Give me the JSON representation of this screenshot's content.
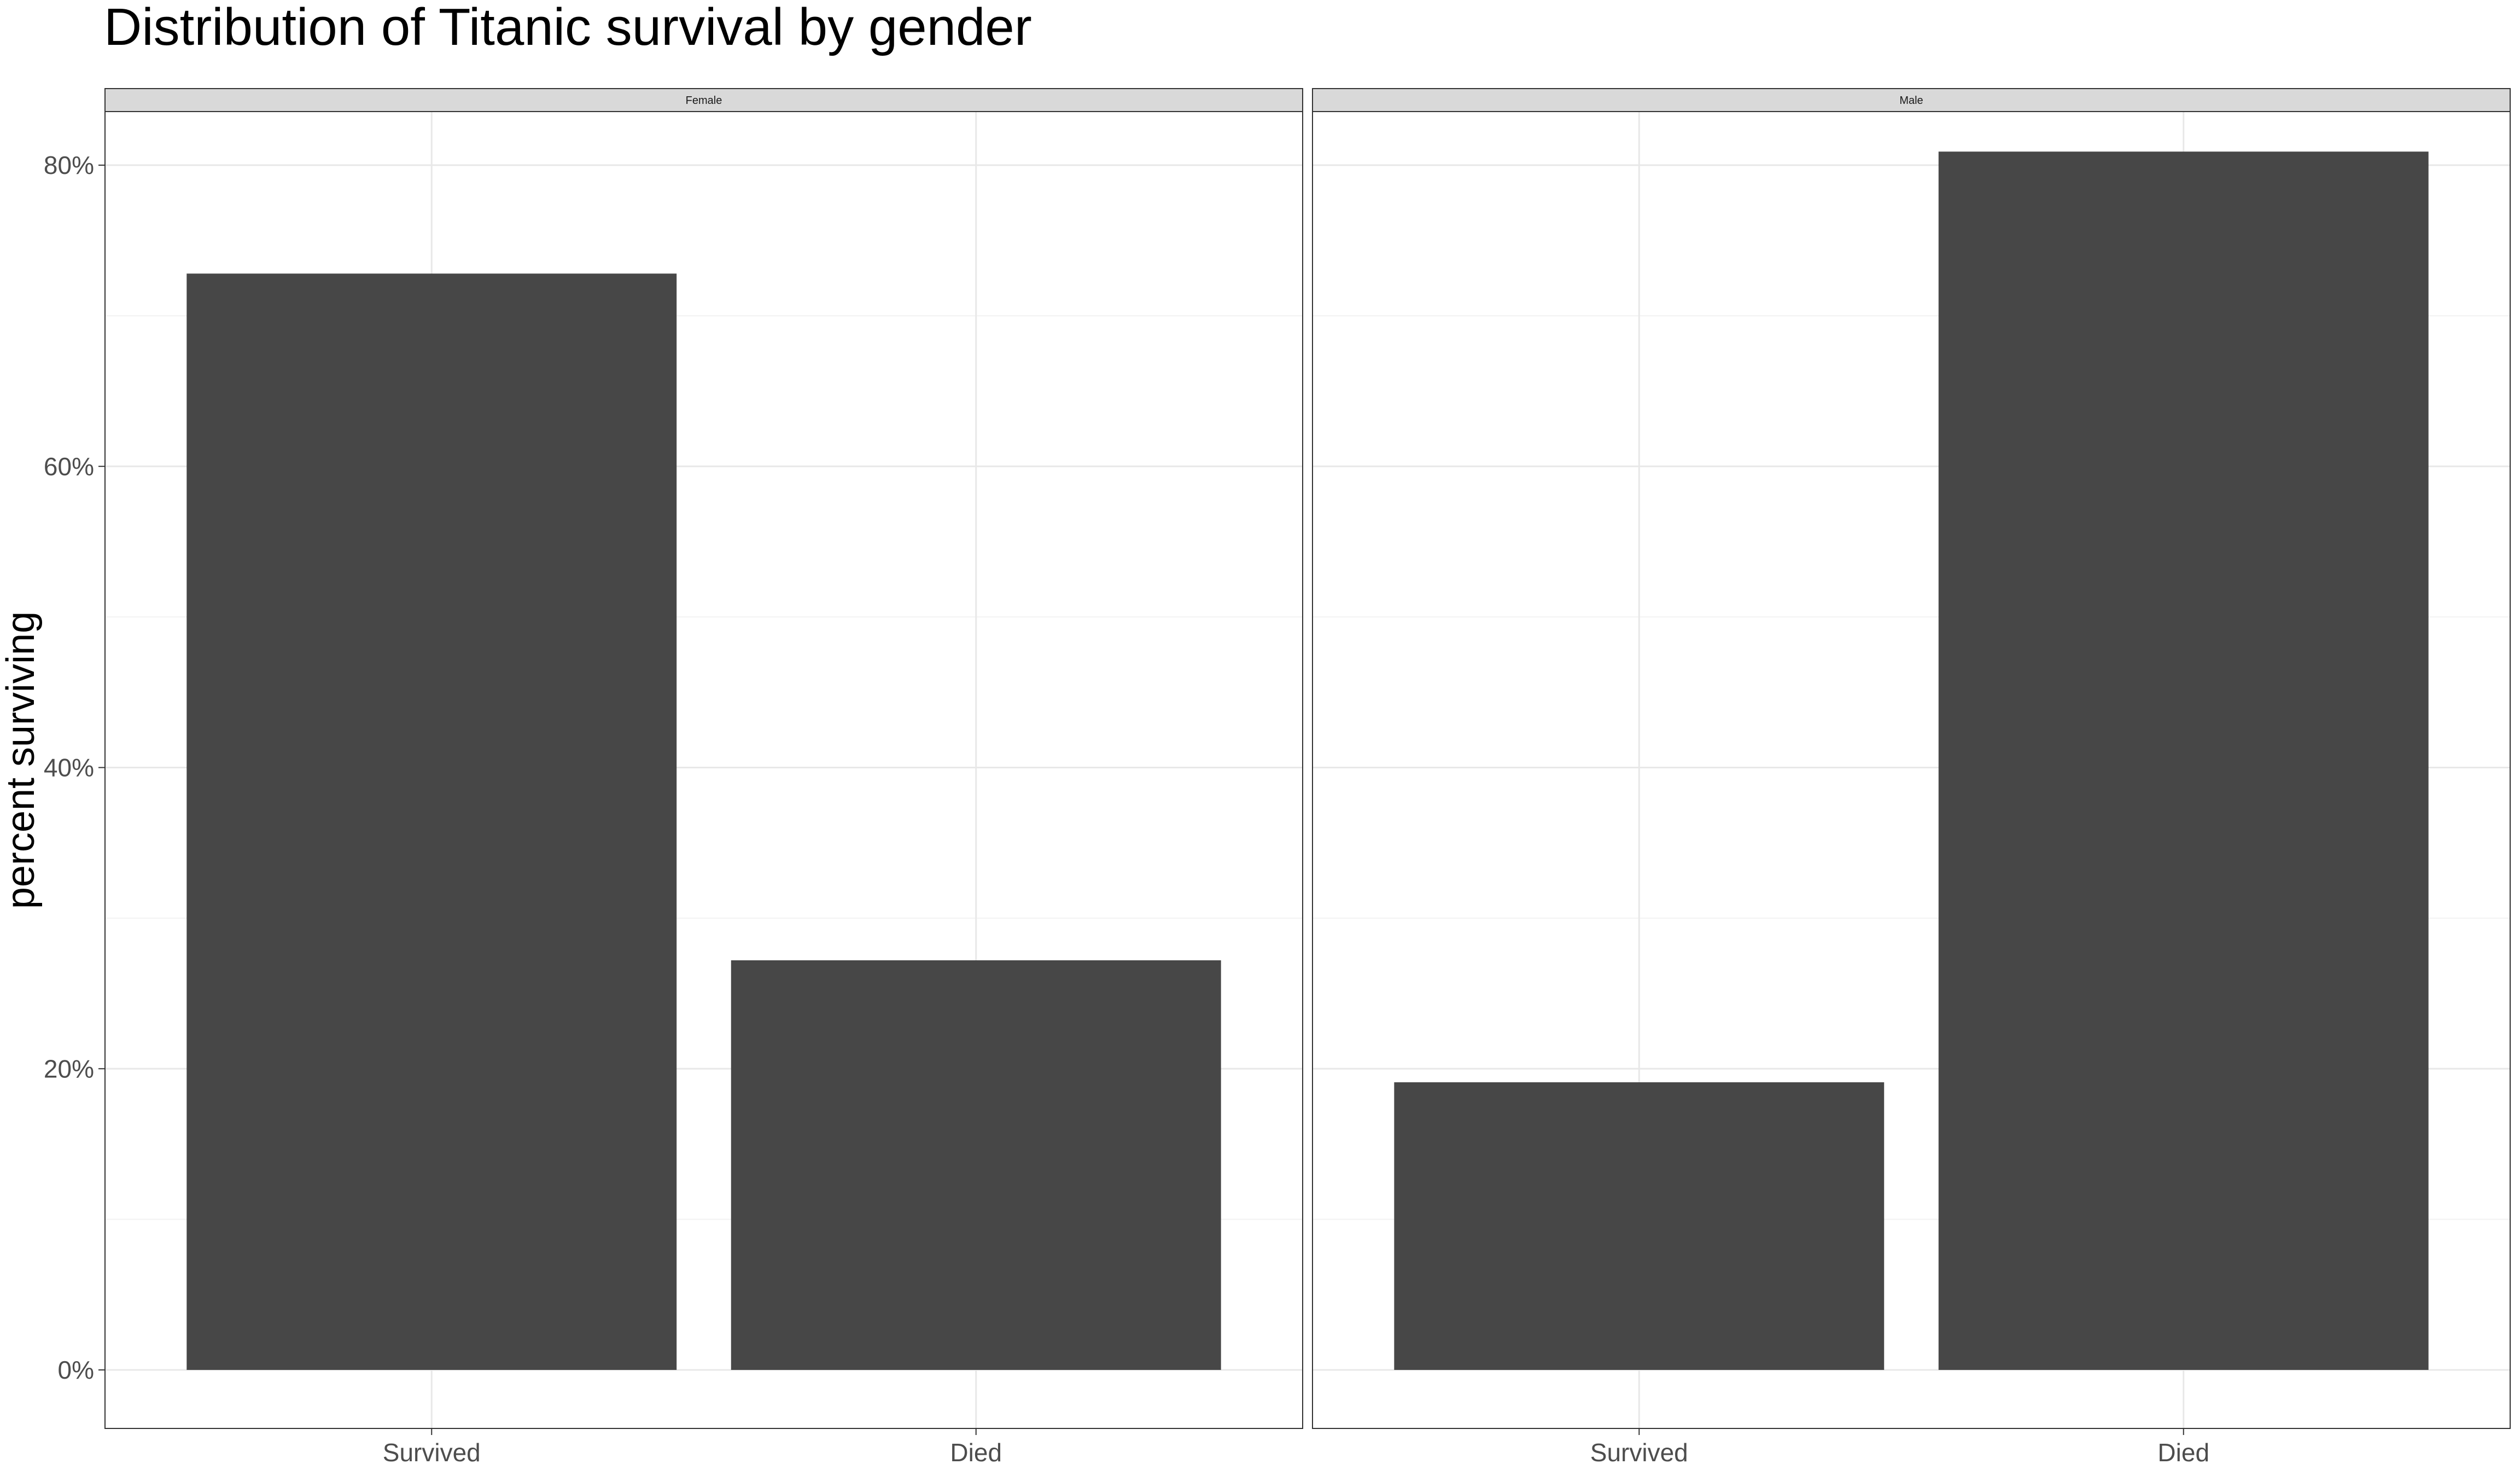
{
  "chart_data": {
    "type": "bar",
    "title": "Distribution of Titanic survival by gender",
    "xlabel": "",
    "ylabel": "percent surviving",
    "ylim": [
      0,
      0.85
    ],
    "y_ticks": [
      0,
      0.2,
      0.4,
      0.6,
      0.8
    ],
    "y_tick_labels": [
      "0%",
      "20%",
      "40%",
      "60%",
      "80%"
    ],
    "categories": [
      "Survived",
      "Died"
    ],
    "grid": true,
    "legend": "none",
    "bar_color": "#474747",
    "panels": [
      {
        "facet": "Female",
        "values": [
          0.728,
          0.272
        ]
      },
      {
        "facet": "Male",
        "values": [
          0.191,
          0.809
        ]
      }
    ]
  }
}
